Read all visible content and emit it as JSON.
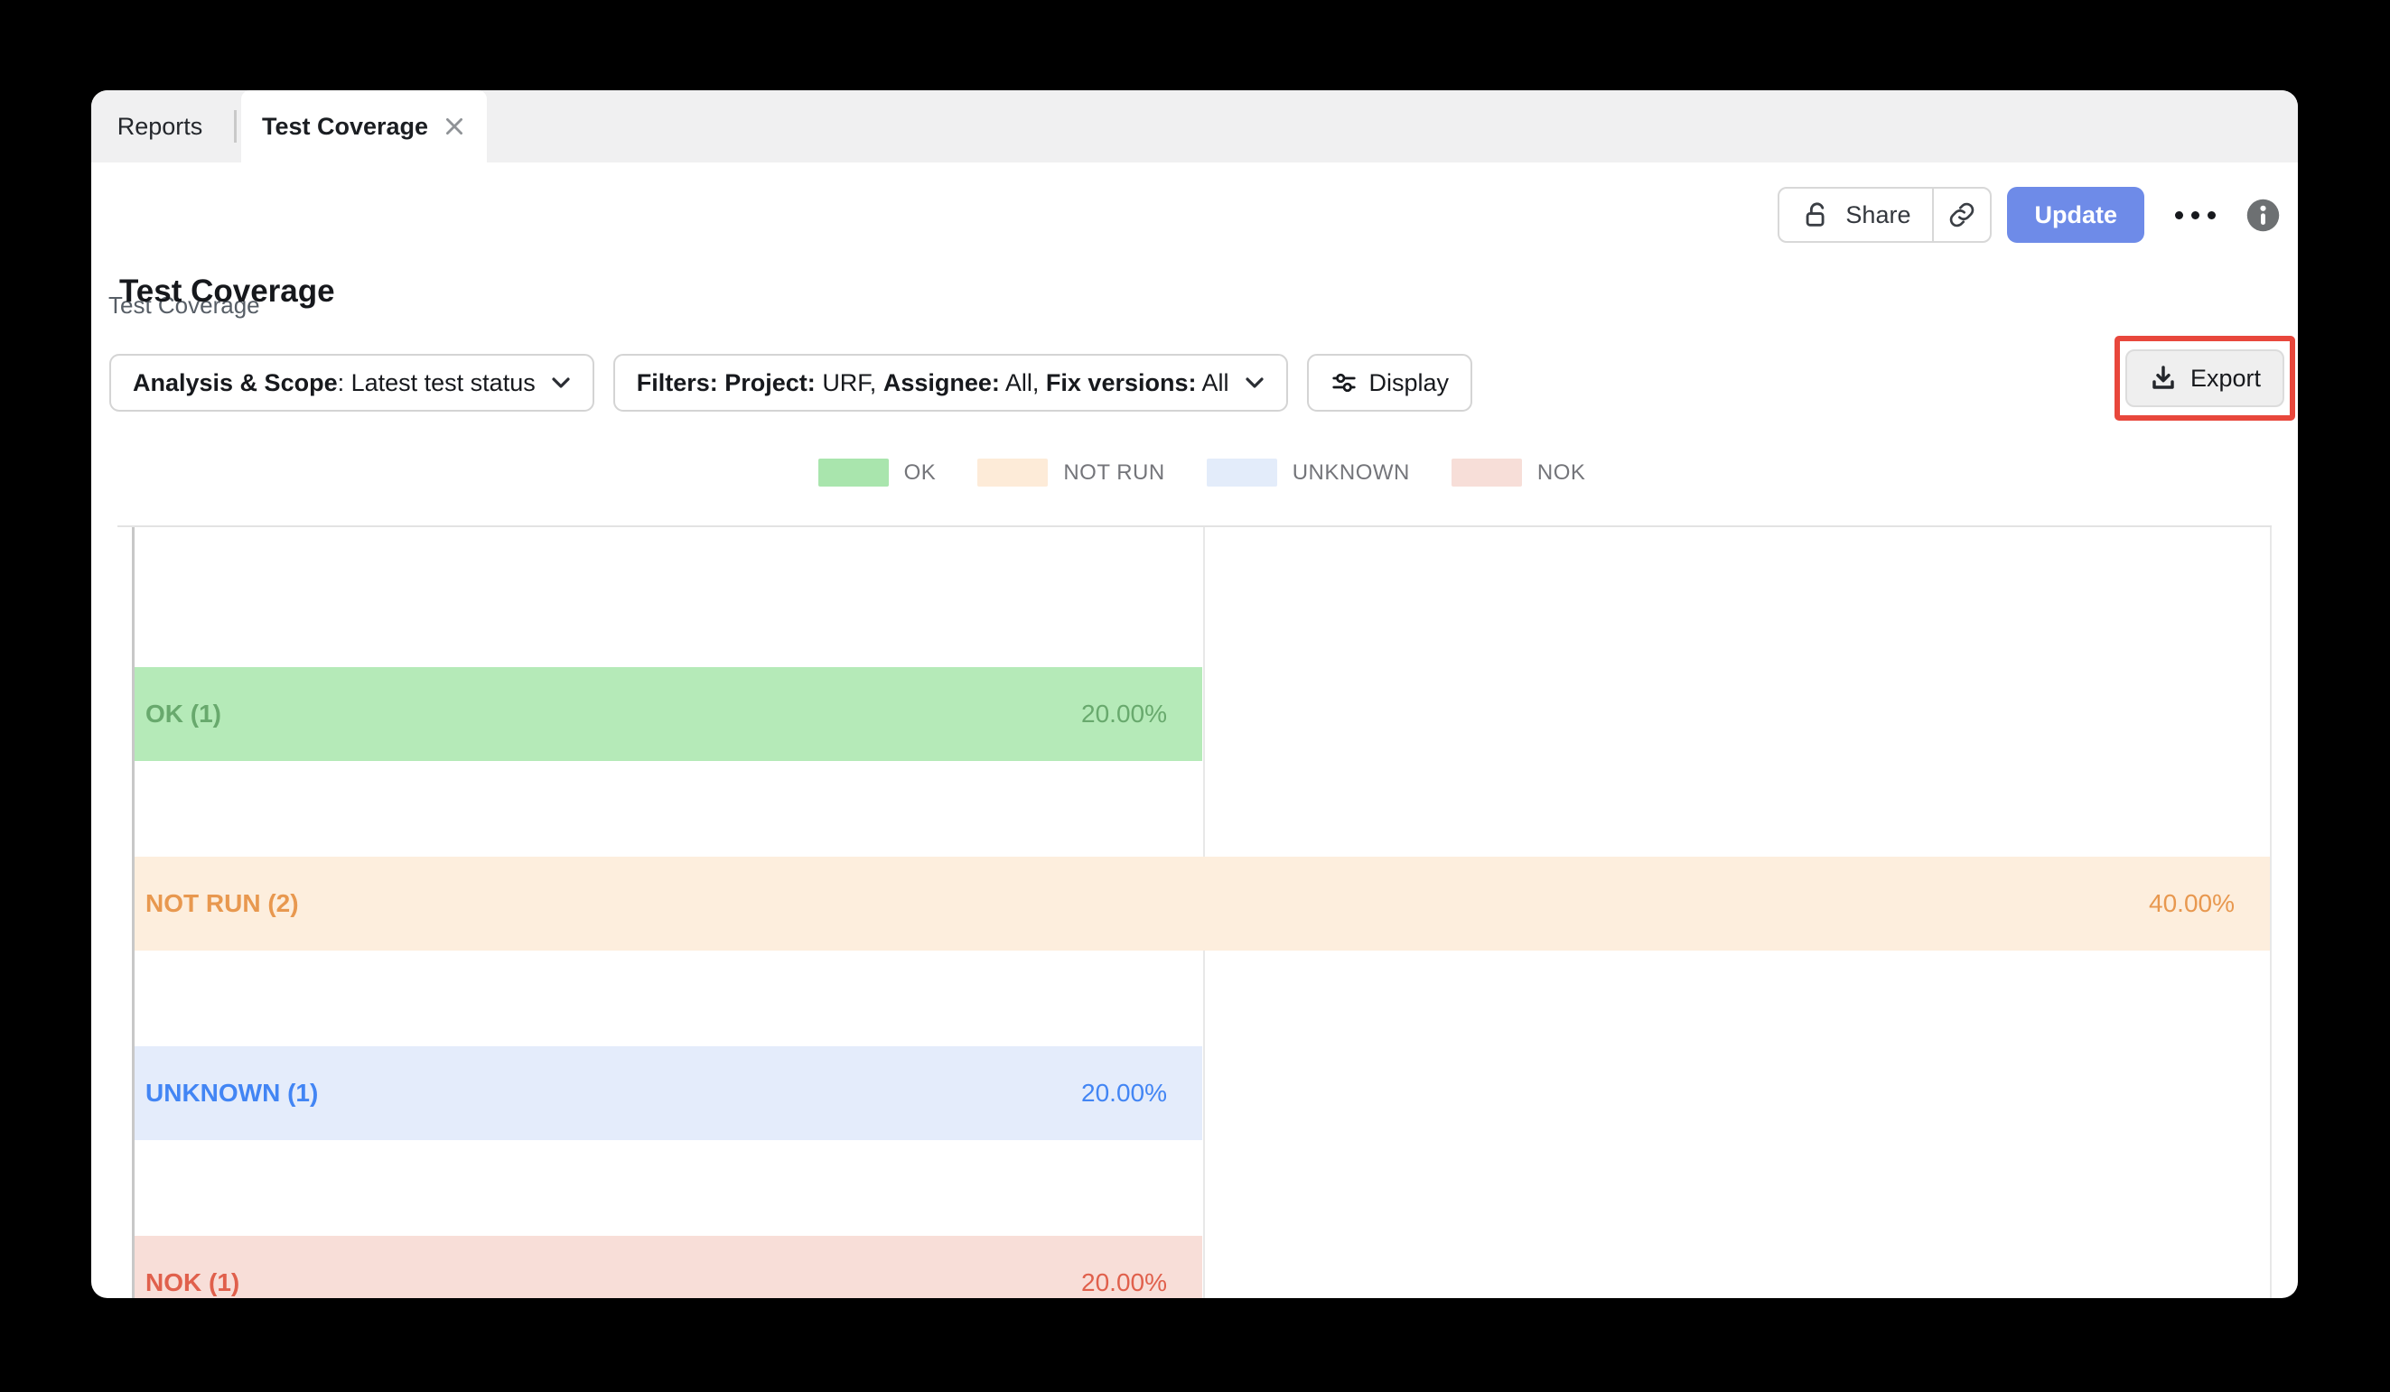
{
  "tabs": [
    {
      "label": "Reports",
      "active": false
    },
    {
      "label": "Test Coverage",
      "active": true,
      "closable": true
    }
  ],
  "header": {
    "breadcrumb": "Test Coverage",
    "share_label": "Share",
    "update_label": "Update",
    "title": "Test Coverage"
  },
  "toolbar": {
    "analysis_scope": {
      "label": "Analysis & Scope",
      "separator": ": ",
      "value": "Latest test status"
    },
    "filters": {
      "segments": [
        {
          "bold": "Filters:",
          "text": ""
        },
        {
          "bold": "Project:",
          "text": "URF,"
        },
        {
          "bold": "Assignee:",
          "text": "All,"
        },
        {
          "bold": "Fix versions:",
          "text": "All"
        }
      ]
    },
    "display_label": "Display",
    "export_label": "Export"
  },
  "legend": [
    {
      "label": "OK",
      "fill": "#a9e5ad"
    },
    {
      "label": "NOT RUN",
      "fill": "#fdebd8"
    },
    {
      "label": "UNKNOWN",
      "fill": "#e3ecfa"
    },
    {
      "label": "NOK",
      "fill": "#f7ded8"
    }
  ],
  "chart_data": {
    "type": "bar",
    "orientation": "horizontal",
    "categories": [
      "OK",
      "NOT RUN",
      "UNKNOWN",
      "NOK"
    ],
    "counts": [
      1,
      2,
      1,
      1
    ],
    "values_pct": [
      20,
      40,
      20,
      20
    ],
    "bar_labels": [
      "OK (1)",
      "NOT RUN (2)",
      "UNKNOWN (1)",
      "NOK (1)"
    ],
    "value_labels": [
      "20.00%",
      "40.00%",
      "20.00%",
      "20.00%"
    ],
    "xlim": [
      0,
      40
    ],
    "grid": true,
    "legend_position": "top",
    "series_colors": {
      "OK": {
        "fill": "#b5eab8",
        "text": "#68a96d"
      },
      "NOT RUN": {
        "fill": "#fdeedd",
        "text": "#e8984f"
      },
      "UNKNOWN": {
        "fill": "#e4ecfb",
        "text": "#4285f4"
      },
      "NOK": {
        "fill": "#f8ded8",
        "text": "#e0604c"
      }
    }
  },
  "icons": {
    "lock-open-icon": "open padlock",
    "link-icon": "chain link",
    "ellipsis-icon": "three dots",
    "info-icon": "i in circle",
    "chevron-down-icon": "caret down",
    "sliders-icon": "display settings sliders",
    "download-icon": "download arrow with tray",
    "close-icon": "x"
  },
  "annotation": {
    "color": "#e8473c",
    "target": "Export button"
  },
  "accent_colors": {
    "update_button": "#6e8be8",
    "tab_bar_bg": "#f0f0f1"
  }
}
